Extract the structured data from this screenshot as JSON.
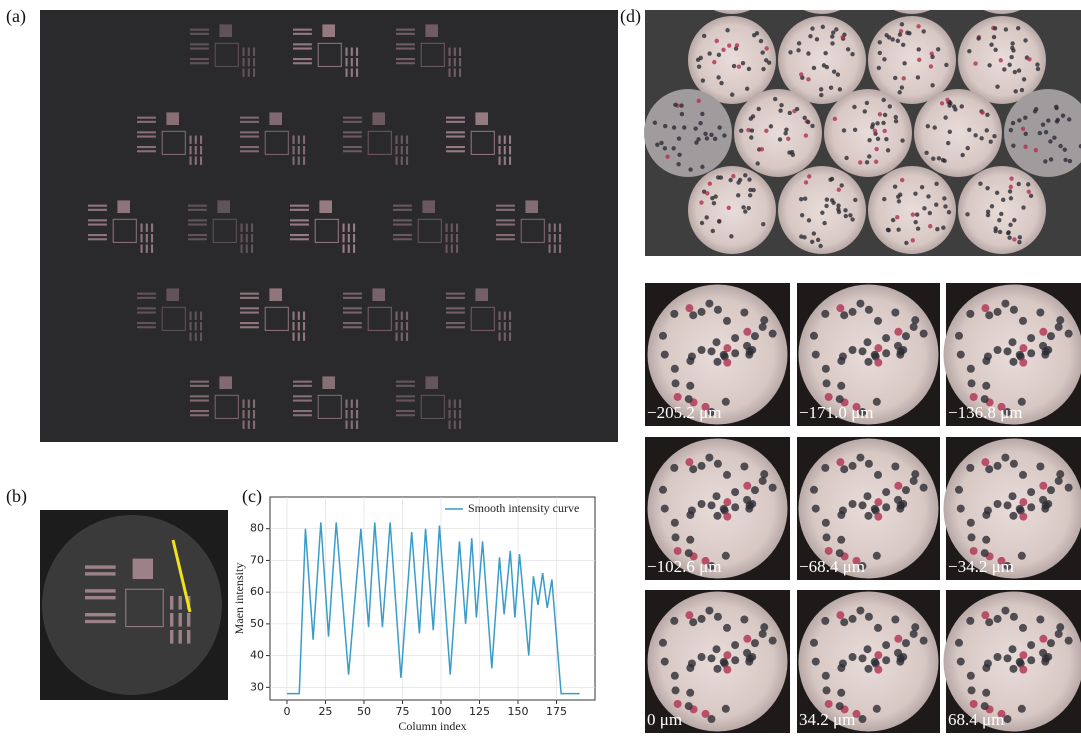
{
  "panels": {
    "a": "(a)",
    "b": "(b)",
    "c": "(c)",
    "d": "(d)"
  },
  "d_tiles": [
    "−205.2 μm",
    "−171.0 μm",
    "−136.8 μm",
    "−102.6 μm",
    "−68.4 μm",
    "−34.2 μm",
    "0 μm",
    "34.2 μm",
    "68.4 μm"
  ],
  "chart_data": {
    "type": "line",
    "x_label": "Column index",
    "y_label": "Maen intensity",
    "x": [
      0,
      8,
      12,
      17,
      22,
      27,
      32,
      40,
      48,
      53,
      57,
      62,
      67,
      74,
      81,
      86,
      90,
      95,
      99,
      106,
      112,
      116,
      120,
      123,
      127,
      133,
      138,
      141,
      145,
      148,
      151,
      157,
      160,
      163,
      166,
      169,
      172,
      178,
      190
    ],
    "series": [
      {
        "name": "Smooth intensity curve",
        "color": "#3a9cc8",
        "values": [
          28,
          28,
          80,
          45,
          82,
          46,
          82,
          34,
          80,
          49,
          82,
          49,
          82,
          33,
          79,
          47,
          80,
          48,
          81,
          34,
          76,
          50,
          77,
          52,
          76,
          36,
          71,
          53,
          73,
          52,
          72,
          40,
          65,
          56,
          66,
          55,
          64,
          28,
          28
        ]
      }
    ],
    "xlim": [
      -11,
      200
    ],
    "ylim": [
      26,
      90
    ],
    "xticks": [
      0,
      25,
      50,
      75,
      100,
      125,
      150,
      175
    ],
    "yticks": [
      30,
      40,
      50,
      60,
      70,
      80
    ],
    "legend": "upper right"
  }
}
